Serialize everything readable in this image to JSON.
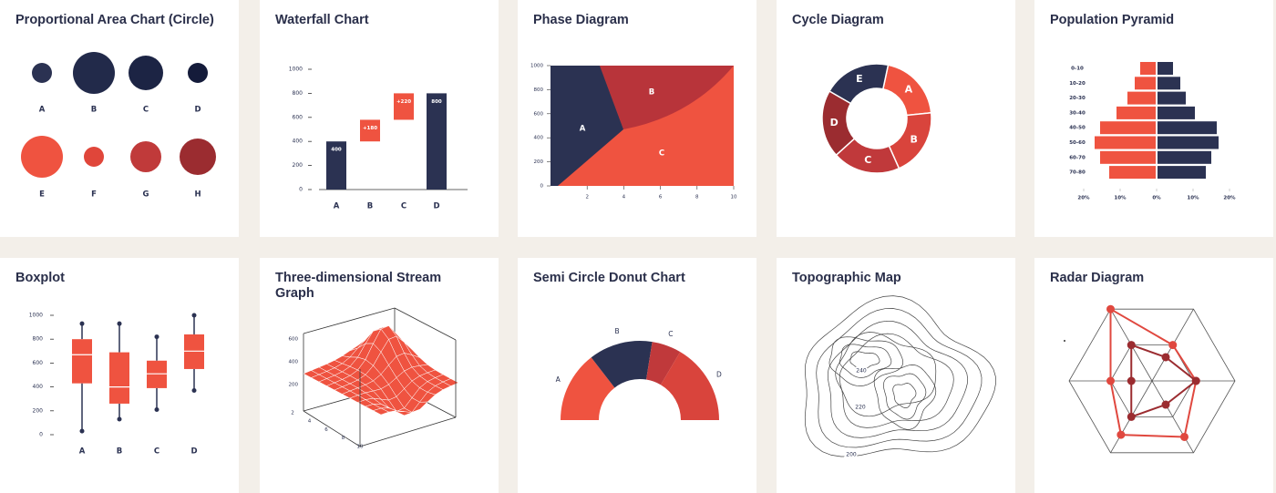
{
  "cards": [
    {
      "title": "Proportional Area Chart (Circle)",
      "type": "proportional-area",
      "categories": [
        "A",
        "B",
        "C",
        "D",
        "E",
        "F",
        "G",
        "H"
      ],
      "values": [
        11,
        23,
        19,
        11,
        23,
        11,
        17,
        20
      ],
      "colors": [
        "#2b3252",
        "#222a4a",
        "#1c2444",
        "#141b3a",
        "#ef5340",
        "#e0463a",
        "#c03a3a",
        "#9b2c30"
      ]
    },
    {
      "title": "Waterfall Chart",
      "type": "waterfall",
      "categories": [
        "A",
        "B",
        "C",
        "D"
      ],
      "values": [
        400,
        180,
        220,
        800
      ],
      "value_labels": [
        "400",
        "+180",
        "+220",
        "800"
      ],
      "is_total": [
        false,
        false,
        false,
        true
      ],
      "colors": [
        "#2b3252",
        "#ef5340",
        "#ef5340",
        "#2b3252"
      ],
      "ylim": [
        0,
        1000
      ],
      "yticks": [
        0,
        200,
        400,
        600,
        800,
        1000
      ]
    },
    {
      "title": "Phase Diagram",
      "type": "phase",
      "regions": [
        "A",
        "B",
        "C"
      ],
      "colors": [
        "#2b3252",
        "#b8343a",
        "#ef5340"
      ],
      "xlim": [
        0,
        10
      ],
      "xticks": [
        2,
        4,
        6,
        8,
        10
      ],
      "ylim": [
        0,
        1000
      ],
      "yticks": [
        0,
        200,
        400,
        600,
        800,
        1000
      ]
    },
    {
      "title": "Cycle Diagram",
      "type": "cycle",
      "categories": [
        "A",
        "B",
        "C",
        "D",
        "E"
      ],
      "values": [
        20,
        20,
        20,
        20,
        20
      ],
      "colors": [
        "#ef5340",
        "#d9443c",
        "#c0393b",
        "#9b2c30",
        "#2b3252"
      ]
    },
    {
      "title": "Population Pyramid",
      "type": "pyramid",
      "categories": [
        "0-10",
        "10-20",
        "20-30",
        "30-40",
        "40-50",
        "50-60",
        "60-70",
        "70-80"
      ],
      "series": [
        {
          "side": "left",
          "color": "#ef5340",
          "values": [
            4.5,
            6,
            8,
            11,
            15.5,
            17,
            15.5,
            13
          ]
        },
        {
          "side": "right",
          "color": "#2b3252",
          "values": [
            4.5,
            6.5,
            8,
            10.5,
            16.5,
            17,
            15,
            13.5
          ]
        }
      ],
      "xlim": [
        -20,
        20
      ],
      "xticks": [
        {
          "value": -20,
          "label": "20%"
        },
        {
          "value": -10,
          "label": "10%"
        },
        {
          "value": 0,
          "label": "0%"
        },
        {
          "value": 10,
          "label": "10%"
        },
        {
          "value": 20,
          "label": "20%"
        }
      ]
    },
    {
      "title": "Boxplot",
      "type": "boxplot",
      "categories": [
        "A",
        "B",
        "C",
        "D"
      ],
      "min": [
        30,
        130,
        210,
        370
      ],
      "q1": [
        430,
        260,
        390,
        550
      ],
      "median": [
        670,
        400,
        510,
        700
      ],
      "q3": [
        800,
        690,
        620,
        840
      ],
      "max": [
        930,
        930,
        820,
        1000
      ],
      "color": "#ef5340",
      "ylim": [
        0,
        1000
      ],
      "yticks": [
        0,
        200,
        400,
        600,
        800,
        1000
      ]
    },
    {
      "title": "Three-dimensional Stream Graph",
      "type": "stream-3d",
      "yticks": [
        600,
        400,
        200
      ],
      "xticks": [
        2,
        4,
        6,
        8,
        10
      ]
    },
    {
      "title": "Semi Circle Donut Chart",
      "type": "semi-donut",
      "categories": [
        "A",
        "B",
        "C",
        "D"
      ],
      "values": [
        29,
        26,
        12,
        33
      ],
      "colors": [
        "#ef5340",
        "#2b3252",
        "#c0393b",
        "#d9443c"
      ]
    },
    {
      "title": "Topographic Map",
      "type": "topographic",
      "contour_labels": [
        "240",
        "220",
        "200"
      ]
    },
    {
      "title": "Radar Diagram",
      "type": "radar",
      "rlim": [
        0,
        100
      ],
      "series": [
        {
          "color": "#e0483f",
          "values": [
            100,
            50,
            53,
            78,
            75,
            50
          ]
        },
        {
          "color": "#9b2c30",
          "values": [
            50,
            33,
            53,
            33,
            50,
            25
          ]
        }
      ]
    }
  ]
}
